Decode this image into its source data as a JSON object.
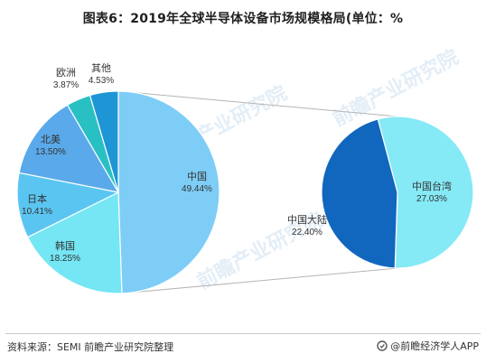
{
  "title": "图表6：2019年全球半导体设备市场规模格局(单位：%",
  "footer": {
    "source": "资料来源：SEMI 前瞻产业研究院整理",
    "brand": "@前瞻经济学人APP"
  },
  "watermark": "前瞻产业研究院",
  "colors": {
    "line": "#b5b5b5",
    "text": "#333333"
  },
  "chart_data": [
    {
      "type": "pie",
      "title": "",
      "unit": "%",
      "slices": [
        {
          "label": "中国",
          "value": 49.44,
          "value_label": "49.44%",
          "color": "#7ecdf7"
        },
        {
          "label": "韩国",
          "value": 18.25,
          "value_label": "18.25%",
          "color": "#74e6f4"
        },
        {
          "label": "日本",
          "value": 10.41,
          "value_label": "10.41%",
          "color": "#5bc5f2"
        },
        {
          "label": "北美",
          "value": 13.5,
          "value_label": "13.50%",
          "color": "#5aa9ea"
        },
        {
          "label": "欧洲",
          "value": 3.87,
          "value_label": "3.87%",
          "color": "#29c0c4"
        },
        {
          "label": "其他",
          "value": 4.53,
          "value_label": "4.53%",
          "color": "#1e96d6"
        }
      ]
    },
    {
      "type": "pie",
      "title": "",
      "unit": "%",
      "breakdown_of": "中国",
      "slices": [
        {
          "label": "中国台湾",
          "value": 27.03,
          "value_label": "27.03%",
          "color": "#85e9f6"
        },
        {
          "label": "中国大陆",
          "value": 22.4,
          "value_label": "22.40%",
          "color": "#1167be"
        }
      ]
    }
  ]
}
